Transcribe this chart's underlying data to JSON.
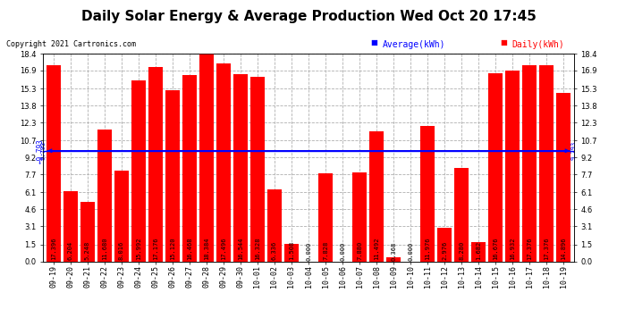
{
  "title": "Daily Solar Energy & Average Production Wed Oct 20 17:45",
  "copyright": "Copyright 2021 Cartronics.com",
  "categories": [
    "09-19",
    "09-20",
    "09-21",
    "09-22",
    "09-23",
    "09-24",
    "09-25",
    "09-26",
    "09-27",
    "09-28",
    "09-29",
    "09-30",
    "10-01",
    "10-02",
    "10-03",
    "10-04",
    "10-05",
    "10-06",
    "10-07",
    "10-08",
    "10-09",
    "10-10",
    "10-11",
    "10-12",
    "10-13",
    "10-14",
    "10-15",
    "10-16",
    "10-17",
    "10-18",
    "10-19"
  ],
  "values": [
    17.396,
    6.204,
    5.248,
    11.68,
    8.016,
    15.992,
    17.176,
    15.12,
    16.468,
    18.384,
    17.496,
    16.544,
    16.328,
    6.336,
    1.508,
    0.0,
    7.828,
    0.0,
    7.88,
    11.492,
    0.368,
    0.0,
    11.976,
    2.976,
    8.28,
    1.682,
    16.676,
    16.932,
    17.376,
    17.376,
    14.896
  ],
  "average": 9.793,
  "bar_color": "#ff0000",
  "avg_line_color": "#0000ff",
  "background_color": "#ffffff",
  "grid_color": "#b0b0b0",
  "ylim": [
    0,
    18.4
  ],
  "yticks": [
    0.0,
    1.5,
    3.1,
    4.6,
    6.1,
    7.7,
    9.2,
    10.7,
    12.3,
    13.8,
    15.3,
    16.9,
    18.4
  ],
  "legend_avg_label": "Average(kWh)",
  "legend_daily_label": "Daily(kWh)",
  "legend_avg_color": "#0000ff",
  "legend_daily_color": "#ff0000",
  "title_fontsize": 11,
  "tick_fontsize": 6,
  "bar_label_fontsize": 5,
  "copyright_fontsize": 6
}
